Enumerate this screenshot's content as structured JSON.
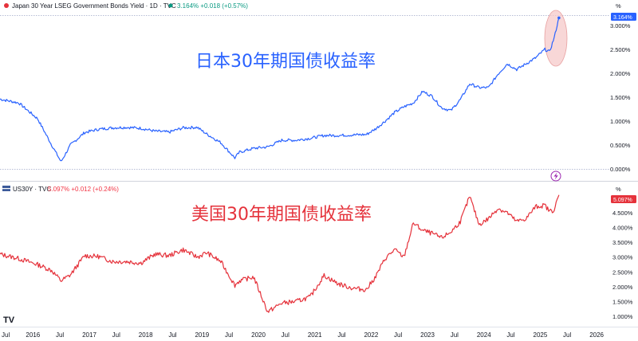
{
  "header": {
    "jp_title": "Japan 30 Year LSEG Government Bonds Yield · 1D · TVC",
    "jp_quote": "3.164%  +0.018 (+0.57%)",
    "us_title": "US30Y · TVC",
    "us_quote": "5.097%  +0.012 (+0.24%)",
    "percent_label": "%",
    "jp_last_badge": "3.164%",
    "us_last_badge": "5.097%",
    "logo_text": "TV"
  },
  "colors": {
    "jp": "#2962ff",
    "us": "#e5323b",
    "accent_green": "#089981",
    "highlight": "#f6c9c9"
  },
  "annotations": {
    "jp": "日本30年期国债收益率",
    "us": "美国30年期国债收益率"
  },
  "axes": {
    "jp_ticks": [
      "3.000%",
      "2.500%",
      "2.000%",
      "1.500%",
      "1.000%",
      "0.500%",
      "0.000%"
    ],
    "us_ticks": [
      "4.500%",
      "4.000%",
      "3.500%",
      "3.000%",
      "2.500%",
      "2.000%",
      "1.500%",
      "1.000%"
    ],
    "x_ticks": [
      "Jul",
      "2016",
      "Jul",
      "2017",
      "Jul",
      "2018",
      "Jul",
      "2019",
      "Jul",
      "2020",
      "Jul",
      "2021",
      "Jul",
      "2022",
      "Jul",
      "2023",
      "Jul",
      "2024",
      "Jul",
      "2025",
      "Jul",
      "2026"
    ]
  },
  "chart_data": [
    {
      "type": "line",
      "title": "Japan 30 Year LSEG Government Bonds Yield · 1D · TVC",
      "ylim": [
        0,
        3.3
      ],
      "series": [
        {
          "name": "Japan 30 Year LSEG Government Bonds Yield",
          "x": [
            "2015-06",
            "2015-10",
            "2016-02",
            "2016-05",
            "2016-07",
            "2016-09",
            "2016-12",
            "2017-03",
            "2017-06",
            "2017-09",
            "2017-12",
            "2018-03",
            "2018-06",
            "2018-09",
            "2018-12",
            "2019-02",
            "2019-05",
            "2019-08",
            "2019-09",
            "2019-12",
            "2020-03",
            "2020-06",
            "2020-09",
            "2020-12",
            "2021-03",
            "2021-06",
            "2021-09",
            "2021-12",
            "2022-02",
            "2022-04",
            "2022-06",
            "2022-08",
            "2022-10",
            "2022-12",
            "2023-02",
            "2023-04",
            "2023-06",
            "2023-08",
            "2023-10",
            "2023-12",
            "2024-02",
            "2024-04",
            "2024-06",
            "2024-08",
            "2024-10",
            "2024-12",
            "2025-02",
            "2025-03",
            "2025-04",
            "2025-05"
          ],
          "values": [
            1.46,
            1.38,
            1.05,
            0.5,
            0.15,
            0.5,
            0.76,
            0.83,
            0.86,
            0.87,
            0.85,
            0.79,
            0.77,
            0.86,
            0.87,
            0.73,
            0.55,
            0.23,
            0.35,
            0.43,
            0.46,
            0.6,
            0.6,
            0.64,
            0.7,
            0.7,
            0.71,
            0.72,
            0.84,
            1.0,
            1.18,
            1.3,
            1.38,
            1.62,
            1.52,
            1.28,
            1.22,
            1.45,
            1.78,
            1.7,
            1.7,
            1.98,
            2.2,
            2.08,
            2.2,
            2.32,
            2.5,
            2.45,
            2.75,
            3.16
          ]
        }
      ]
    },
    {
      "type": "line",
      "title": "US30Y · TVC",
      "ylim": [
        0.9,
        5.2
      ],
      "series": [
        {
          "name": "US30Y",
          "x": [
            "2015-06",
            "2015-10",
            "2016-02",
            "2016-05",
            "2016-07",
            "2016-09",
            "2016-12",
            "2017-03",
            "2017-06",
            "2017-09",
            "2017-12",
            "2018-03",
            "2018-06",
            "2018-09",
            "2018-12",
            "2019-02",
            "2019-05",
            "2019-08",
            "2019-09",
            "2019-12",
            "2020-03",
            "2020-06",
            "2020-09",
            "2020-12",
            "2021-03",
            "2021-06",
            "2021-09",
            "2021-12",
            "2022-02",
            "2022-04",
            "2022-06",
            "2022-08",
            "2022-10",
            "2022-12",
            "2023-02",
            "2023-04",
            "2023-06",
            "2023-08",
            "2023-10",
            "2023-12",
            "2024-02",
            "2024-04",
            "2024-06",
            "2024-08",
            "2024-10",
            "2024-12",
            "2025-02",
            "2025-03",
            "2025-04",
            "2025-05"
          ],
          "values": [
            3.1,
            2.95,
            2.75,
            2.55,
            2.2,
            2.4,
            3.05,
            3.02,
            2.85,
            2.85,
            2.8,
            3.1,
            3.05,
            3.25,
            3.0,
            3.15,
            2.85,
            2.05,
            2.2,
            2.33,
            1.15,
            1.45,
            1.5,
            1.65,
            2.38,
            2.1,
            1.95,
            1.9,
            2.35,
            2.95,
            3.25,
            3.0,
            4.15,
            3.9,
            3.8,
            3.65,
            3.85,
            4.2,
            5.05,
            4.1,
            4.3,
            4.65,
            4.5,
            4.2,
            4.3,
            4.7,
            4.75,
            4.55,
            4.6,
            5.1
          ]
        }
      ]
    }
  ]
}
